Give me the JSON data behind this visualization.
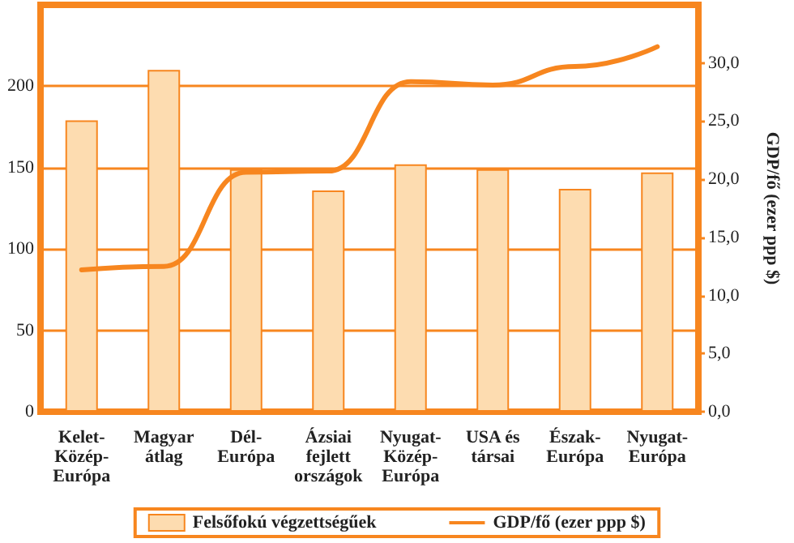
{
  "chart_data": {
    "type": "bar",
    "categories": [
      "Kelet-Közép-Európa",
      "Magyar átlag",
      "Dél-Európa",
      "Ázsiai fejlett országok",
      "Nyugat-Közép-Európa",
      "USA és társai",
      "Észak-Európa",
      "Nyugat-Európa"
    ],
    "series": [
      {
        "name": "Felsőfokú végzettségűek",
        "color": "#fddcb0",
        "values": [
          179,
          210,
          149,
          136,
          152,
          149,
          137,
          147
        ]
      },
      {
        "name": "GDP/fő (ezer ppp $)",
        "type": "line",
        "axis": "y2",
        "color": "#f7861f",
        "values": [
          12.2,
          12.5,
          20.6,
          20.7,
          28.4,
          28.1,
          29.7,
          31.4
        ]
      }
    ],
    "y2label": "GDP/fő (ezer ppp $)",
    "ylim": [
      0,
      250
    ],
    "yticks": [
      0,
      50,
      100,
      150,
      200
    ],
    "y2lim": [
      0,
      35
    ],
    "y2ticks": [
      {
        "value": 0,
        "label": "0,0"
      },
      {
        "value": 5,
        "label": "5,0"
      },
      {
        "value": 10,
        "label": "10,0"
      },
      {
        "value": 15,
        "label": "15,0"
      },
      {
        "value": 20,
        "label": "20,0"
      },
      {
        "value": 25,
        "label": "25,0"
      },
      {
        "value": 30,
        "label": "30,0"
      }
    ],
    "grid": "y",
    "legend": "bottom",
    "marker": "none"
  }
}
